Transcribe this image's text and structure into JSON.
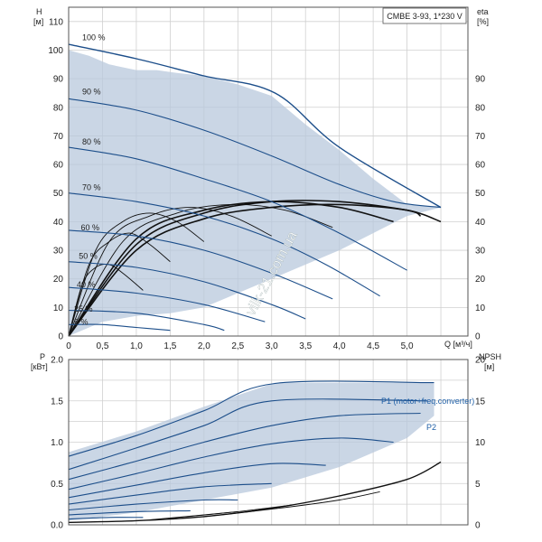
{
  "chart_data": [
    {
      "type": "line",
      "title": "CMBE 3-93, 1*230 V",
      "xlabel": "Q [м³/ч]",
      "ylabel": "H\n[м]",
      "y2label": "eta\n[%]",
      "xlim": [
        0,
        5.9
      ],
      "ylim": [
        0,
        115
      ],
      "y2lim": [
        0,
        115
      ],
      "x_ticks": [
        "0",
        "0,5",
        "1,0",
        "1,5",
        "2,0",
        "2,5",
        "3,0",
        "3,5",
        "4,0",
        "4,5",
        "5,0"
      ],
      "y_ticks": [
        "0",
        "10",
        "20",
        "30",
        "40",
        "50",
        "60",
        "70",
        "80",
        "90",
        "100",
        "110"
      ],
      "y2_ticks": [
        "0",
        "10",
        "20",
        "30",
        "40",
        "50",
        "60",
        "70",
        "80",
        "90"
      ],
      "grid": true,
      "watermark": "vilk-21.com.ua",
      "envelope": {
        "q": [
          0,
          0.3,
          0.6,
          1.0,
          1.3,
          1.6,
          2.0,
          2.5,
          3.0,
          3.5,
          4.0,
          4.5,
          5.0,
          5.5,
          5.5,
          5.0,
          4.5,
          4.0,
          3.5,
          3.0,
          2.5,
          2.0,
          1.5,
          1.0,
          0.5,
          0
        ],
        "h": [
          100,
          98,
          95,
          93,
          93,
          92,
          91,
          88,
          84,
          74,
          65,
          55,
          46,
          45,
          45,
          42,
          36,
          30,
          25,
          20,
          15,
          10,
          8,
          7,
          5,
          0
        ]
      },
      "series": [
        {
          "name": "100 %",
          "x": [
            0,
            1.0,
            2.0,
            3.05,
            4.0,
            5.5
          ],
          "y": [
            102,
            97,
            91,
            85,
            66,
            45
          ]
        },
        {
          "name": "90 %",
          "x": [
            0,
            1.0,
            2.0,
            3.0,
            4.0,
            4.8,
            5.5
          ],
          "y": [
            83,
            79,
            72,
            63,
            53,
            47,
            45
          ]
        },
        {
          "name": "80 %",
          "x": [
            0,
            1.0,
            2.0,
            3.0,
            4.0,
            5.0
          ],
          "y": [
            66,
            62,
            55,
            47,
            36,
            23
          ]
        },
        {
          "name": "70 %",
          "x": [
            0,
            1.0,
            2.0,
            3.0,
            3.8,
            4.6
          ],
          "y": [
            50,
            47,
            42,
            34,
            25,
            14
          ]
        },
        {
          "name": "60 %",
          "x": [
            0,
            1.0,
            2.0,
            3.0,
            3.9
          ],
          "y": [
            37,
            35,
            30,
            22,
            13
          ]
        },
        {
          "name": "50 %",
          "x": [
            0,
            1.0,
            2.0,
            3.0,
            3.5
          ],
          "y": [
            26,
            24,
            19,
            11,
            6
          ]
        },
        {
          "name": "40 %",
          "x": [
            0,
            1.0,
            2.0,
            2.9
          ],
          "y": [
            17,
            15,
            11,
            5
          ]
        },
        {
          "name": "25 %",
          "x": [
            0,
            1.0,
            2.0,
            2.3
          ],
          "y": [
            9,
            8,
            4,
            2
          ]
        },
        {
          "name": "5 %",
          "x": [
            0,
            0.5,
            1.0,
            1.5
          ],
          "y": [
            4,
            4,
            3,
            2
          ]
        }
      ],
      "efficiency_curves": [
        {
          "q": [
            0,
            1.0,
            2.0,
            3.0,
            4.0,
            5.0,
            5.5
          ],
          "eta": [
            0,
            30,
            41,
            45,
            46,
            44,
            40
          ]
        },
        {
          "q": [
            0,
            1.0,
            2.0,
            3.0,
            4.0,
            5.0,
            5.2
          ],
          "eta": [
            0,
            32,
            43,
            47,
            47,
            44,
            42
          ]
        },
        {
          "q": [
            0,
            1.0,
            2.0,
            3.0,
            4.0,
            4.8
          ],
          "eta": [
            0,
            34,
            44,
            47,
            45,
            40
          ]
        },
        {
          "q": [
            0,
            0.8,
            1.6,
            2.4,
            3.2,
            3.9
          ],
          "eta": [
            0,
            33,
            43,
            46,
            44,
            38
          ]
        },
        {
          "q": [
            0,
            0.6,
            1.2,
            1.8,
            2.4,
            3.0
          ],
          "eta": [
            0,
            33,
            42,
            45,
            42,
            35
          ]
        },
        {
          "q": [
            0,
            0.4,
            0.8,
            1.2,
            1.6,
            2.0
          ],
          "eta": [
            0,
            30,
            40,
            43,
            40,
            33
          ]
        },
        {
          "q": [
            0,
            0.3,
            0.6,
            0.9,
            1.2,
            1.5
          ],
          "eta": [
            0,
            25,
            33,
            36,
            32,
            26
          ]
        },
        {
          "q": [
            0,
            0.2,
            0.4,
            0.6,
            0.8,
            1.1
          ],
          "eta": [
            0,
            18,
            24,
            25,
            22,
            16
          ]
        }
      ],
      "annotations": [
        "100 %",
        "90 %",
        "80 %",
        "70 %",
        "60 %",
        "50 %",
        "40 %",
        "25 %",
        "5 %"
      ]
    },
    {
      "type": "line",
      "xlabel": "",
      "ylabel": "P\n[кВт]",
      "y2label": "NPSH\n[м]",
      "xlim": [
        0,
        5.9
      ],
      "ylim": [
        0,
        2.0
      ],
      "y2lim": [
        0,
        20
      ],
      "y_ticks": [
        "0.0",
        "0.5",
        "1.0",
        "1.5",
        "2.0"
      ],
      "y2_ticks": [
        "0",
        "5",
        "10",
        "15",
        "20"
      ],
      "grid": true,
      "series_labels": [
        "P1 (motor+freq.converter)",
        "P2"
      ],
      "envelope": {
        "q": [
          0,
          1.0,
          2.0,
          3.05,
          5.4,
          5.4,
          5.0,
          4.0,
          3.0,
          2.0,
          1.0,
          0
        ],
        "p": [
          0.88,
          1.13,
          1.43,
          1.72,
          1.72,
          1.32,
          1.05,
          0.7,
          0.45,
          0.3,
          0.15,
          0.05
        ]
      },
      "p1_series": [
        {
          "x": [
            0,
            1.0,
            2.0,
            3.05,
            5.4
          ],
          "y": [
            0.83,
            1.08,
            1.38,
            1.71,
            1.72
          ]
        },
        {
          "x": [
            0,
            1.0,
            2.0,
            3.0,
            5.3
          ],
          "y": [
            0.67,
            0.93,
            1.2,
            1.5,
            1.5
          ]
        },
        {
          "x": [
            0,
            1.0,
            2.0,
            3.0,
            4.0,
            5.2
          ],
          "y": [
            0.55,
            0.77,
            1.0,
            1.2,
            1.32,
            1.35
          ]
        },
        {
          "x": [
            0,
            1.0,
            2.0,
            3.0,
            4.0,
            4.8
          ],
          "y": [
            0.43,
            0.62,
            0.82,
            0.98,
            1.05,
            1.0
          ]
        },
        {
          "x": [
            0,
            1.0,
            2.0,
            3.0,
            3.8
          ],
          "y": [
            0.33,
            0.48,
            0.63,
            0.74,
            0.72
          ]
        },
        {
          "x": [
            0,
            1.0,
            2.0,
            3.0
          ],
          "y": [
            0.25,
            0.36,
            0.46,
            0.5
          ]
        },
        {
          "x": [
            0,
            1.0,
            2.0,
            2.5
          ],
          "y": [
            0.18,
            0.25,
            0.3,
            0.3
          ]
        },
        {
          "x": [
            0,
            1.0,
            1.8
          ],
          "y": [
            0.12,
            0.16,
            0.17
          ]
        },
        {
          "x": [
            0,
            0.6,
            1.1
          ],
          "y": [
            0.07,
            0.09,
            0.09
          ]
        }
      ],
      "npsh_curves": [
        {
          "q": [
            0,
            1.0,
            2.0,
            3.0,
            4.0,
            5.0,
            5.5
          ],
          "npsh": [
            0.3,
            0.5,
            1.0,
            2.0,
            3.5,
            5.5,
            7.6
          ]
        },
        {
          "q": [
            2.0,
            3.0,
            4.0,
            4.6
          ],
          "npsh": [
            1.0,
            1.9,
            3.0,
            4.0
          ]
        },
        {
          "q": [
            1.5,
            2.5,
            3.3
          ],
          "npsh": [
            0.8,
            1.6,
            2.4
          ]
        },
        {
          "q": [
            1.2,
            2.0,
            2.5
          ],
          "npsh": [
            0.6,
            1.2,
            1.6
          ]
        }
      ]
    }
  ]
}
